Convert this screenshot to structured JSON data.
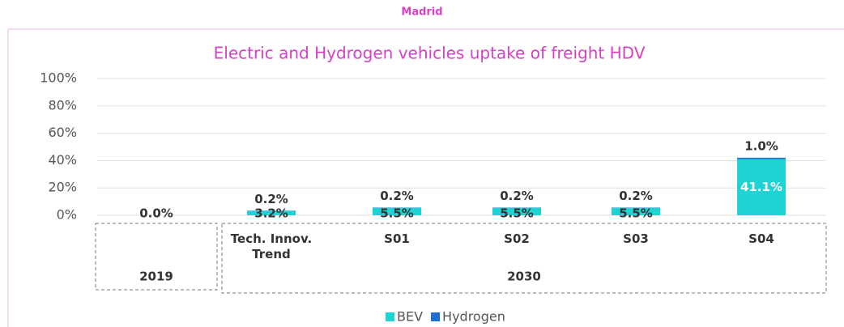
{
  "header": {
    "title": "Madrid"
  },
  "chart_data": {
    "type": "stacked_bar",
    "title": "Electric and Hydrogen vehicles uptake of freight HDV",
    "categories": [
      null,
      "Tech. Innov. Trend",
      "S01",
      "S02",
      "S03",
      "S04"
    ],
    "groups": [
      {
        "label": "2019",
        "span": 1
      },
      {
        "label": "2030",
        "span": 5
      }
    ],
    "series": [
      {
        "name": "BEV",
        "color": "#1ed3d3",
        "values": [
          0.0,
          3.2,
          5.5,
          5.5,
          5.5,
          41.1
        ],
        "value_labels": [
          "0.0%",
          "3.2%",
          "5.5%",
          "5.5%",
          "5.5%",
          "41.1%"
        ]
      },
      {
        "name": "Hydrogen",
        "color": "#1f6fd0",
        "values": [
          null,
          0.2,
          0.2,
          0.2,
          0.2,
          1.0
        ],
        "value_labels": [
          null,
          "0.2%",
          "0.2%",
          "0.2%",
          "0.2%",
          "1.0%"
        ]
      }
    ],
    "ylim": [
      0,
      100
    ],
    "yticks": [
      {
        "value": 0,
        "label": "0%"
      },
      {
        "value": 20,
        "label": "20%"
      },
      {
        "value": 40,
        "label": "40%"
      },
      {
        "value": 60,
        "label": "60%"
      },
      {
        "value": 80,
        "label": "80%"
      },
      {
        "value": 100,
        "label": "100%"
      }
    ],
    "grid": true,
    "legend": "bottom"
  }
}
